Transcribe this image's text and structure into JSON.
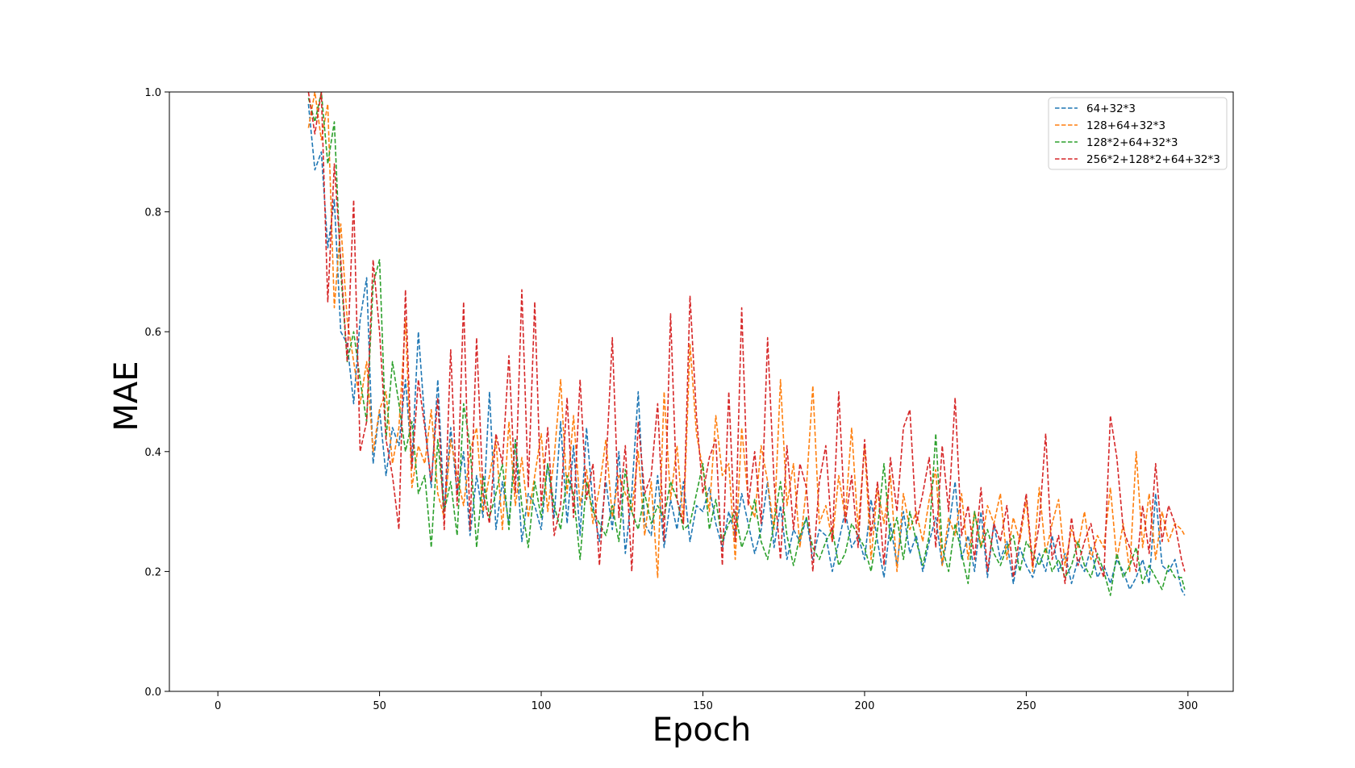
{
  "chart_data": {
    "type": "line",
    "title": "",
    "xlabel": "Epoch",
    "ylabel": "MAE",
    "xlim": [
      -15,
      314
    ],
    "ylim": [
      0.0,
      1.0
    ],
    "xticks": [
      0,
      50,
      100,
      150,
      200,
      250,
      300
    ],
    "yticks": [
      0.0,
      0.2,
      0.4,
      0.6,
      0.8,
      1.0
    ],
    "xtick_labels": [
      "0",
      "50",
      "100",
      "150",
      "200",
      "250",
      "300"
    ],
    "ytick_labels": [
      "0.0",
      "0.2",
      "0.4",
      "0.6",
      "0.8",
      "1.0"
    ],
    "grid": false,
    "line_style": "dashed",
    "legend_position": "top-right",
    "x": [
      28,
      30,
      32,
      34,
      36,
      38,
      40,
      42,
      44,
      46,
      48,
      50,
      52,
      54,
      56,
      58,
      60,
      62,
      64,
      66,
      68,
      70,
      72,
      74,
      76,
      78,
      80,
      82,
      84,
      86,
      88,
      90,
      92,
      94,
      96,
      98,
      100,
      102,
      104,
      106,
      108,
      110,
      112,
      114,
      116,
      118,
      120,
      122,
      124,
      126,
      128,
      130,
      132,
      134,
      136,
      138,
      140,
      142,
      144,
      146,
      148,
      150,
      152,
      154,
      156,
      158,
      160,
      162,
      164,
      166,
      168,
      170,
      172,
      174,
      176,
      178,
      180,
      182,
      184,
      186,
      188,
      190,
      192,
      194,
      196,
      198,
      200,
      202,
      204,
      206,
      208,
      210,
      212,
      214,
      216,
      218,
      220,
      222,
      224,
      226,
      228,
      230,
      232,
      234,
      236,
      238,
      240,
      242,
      244,
      246,
      248,
      250,
      252,
      254,
      256,
      258,
      260,
      262,
      264,
      266,
      268,
      270,
      272,
      274,
      276,
      278,
      280,
      282,
      284,
      286,
      288,
      290,
      292,
      294,
      296,
      298,
      299
    ],
    "series": [
      {
        "name": "64+32*3",
        "color": "#1f77b4",
        "values": [
          0.98,
          0.87,
          0.9,
          0.74,
          0.82,
          0.6,
          0.58,
          0.48,
          0.62,
          0.69,
          0.38,
          0.47,
          0.36,
          0.44,
          0.41,
          0.52,
          0.38,
          0.6,
          0.45,
          0.34,
          0.52,
          0.3,
          0.44,
          0.33,
          0.4,
          0.26,
          0.36,
          0.29,
          0.5,
          0.27,
          0.35,
          0.28,
          0.42,
          0.25,
          0.33,
          0.31,
          0.27,
          0.38,
          0.29,
          0.45,
          0.28,
          0.41,
          0.26,
          0.44,
          0.31,
          0.25,
          0.35,
          0.27,
          0.4,
          0.23,
          0.33,
          0.5,
          0.28,
          0.26,
          0.36,
          0.24,
          0.32,
          0.27,
          0.35,
          0.25,
          0.31,
          0.3,
          0.34,
          0.28,
          0.24,
          0.3,
          0.26,
          0.33,
          0.28,
          0.23,
          0.27,
          0.35,
          0.24,
          0.31,
          0.22,
          0.27,
          0.25,
          0.29,
          0.22,
          0.27,
          0.26,
          0.2,
          0.25,
          0.3,
          0.24,
          0.26,
          0.22,
          0.32,
          0.25,
          0.19,
          0.28,
          0.21,
          0.3,
          0.23,
          0.26,
          0.2,
          0.25,
          0.29,
          0.21,
          0.27,
          0.35,
          0.22,
          0.26,
          0.2,
          0.3,
          0.19,
          0.28,
          0.22,
          0.25,
          0.18,
          0.24,
          0.21,
          0.19,
          0.23,
          0.2,
          0.26,
          0.2,
          0.23,
          0.18,
          0.22,
          0.2,
          0.24,
          0.19,
          0.21,
          0.18,
          0.22,
          0.2,
          0.17,
          0.19,
          0.22,
          0.18,
          0.33,
          0.21,
          0.2,
          0.22,
          0.17,
          0.16
        ]
      },
      {
        "name": "128+64+32*3",
        "color": "#ff7f0e",
        "values": [
          0.94,
          1.0,
          0.92,
          0.98,
          0.64,
          0.78,
          0.62,
          0.55,
          0.48,
          0.55,
          0.4,
          0.47,
          0.5,
          0.38,
          0.44,
          0.62,
          0.34,
          0.41,
          0.38,
          0.47,
          0.33,
          0.29,
          0.42,
          0.36,
          0.31,
          0.4,
          0.44,
          0.3,
          0.36,
          0.42,
          0.27,
          0.45,
          0.31,
          0.39,
          0.29,
          0.36,
          0.43,
          0.3,
          0.39,
          0.52,
          0.33,
          0.46,
          0.31,
          0.37,
          0.28,
          0.34,
          0.42,
          0.29,
          0.36,
          0.33,
          0.3,
          0.4,
          0.26,
          0.35,
          0.19,
          0.5,
          0.32,
          0.41,
          0.28,
          0.58,
          0.43,
          0.37,
          0.3,
          0.46,
          0.36,
          0.38,
          0.22,
          0.44,
          0.32,
          0.29,
          0.41,
          0.35,
          0.27,
          0.52,
          0.31,
          0.38,
          0.24,
          0.34,
          0.51,
          0.28,
          0.31,
          0.25,
          0.36,
          0.29,
          0.44,
          0.27,
          0.41,
          0.22,
          0.34,
          0.28,
          0.36,
          0.2,
          0.33,
          0.27,
          0.3,
          0.25,
          0.32,
          0.37,
          0.21,
          0.29,
          0.26,
          0.33,
          0.22,
          0.3,
          0.24,
          0.31,
          0.28,
          0.33,
          0.22,
          0.29,
          0.25,
          0.32,
          0.2,
          0.34,
          0.23,
          0.28,
          0.32,
          0.21,
          0.27,
          0.24,
          0.3,
          0.22,
          0.26,
          0.24,
          0.34,
          0.22,
          0.28,
          0.2,
          0.4,
          0.24,
          0.33,
          0.22,
          0.3,
          0.25,
          0.28,
          0.27,
          0.26
        ]
      },
      {
        "name": "128*2+64+32*3",
        "color": "#2ca02c",
        "values": [
          0.99,
          0.95,
          1.0,
          0.88,
          0.95,
          0.7,
          0.55,
          0.6,
          0.52,
          0.45,
          0.68,
          0.72,
          0.42,
          0.55,
          0.48,
          0.4,
          0.45,
          0.33,
          0.36,
          0.24,
          0.42,
          0.3,
          0.35,
          0.26,
          0.48,
          0.41,
          0.24,
          0.36,
          0.29,
          0.33,
          0.38,
          0.27,
          0.42,
          0.31,
          0.24,
          0.35,
          0.29,
          0.38,
          0.31,
          0.27,
          0.36,
          0.33,
          0.22,
          0.35,
          0.3,
          0.28,
          0.26,
          0.31,
          0.25,
          0.37,
          0.3,
          0.27,
          0.33,
          0.28,
          0.31,
          0.29,
          0.35,
          0.32,
          0.27,
          0.28,
          0.33,
          0.38,
          0.27,
          0.32,
          0.25,
          0.28,
          0.3,
          0.24,
          0.27,
          0.32,
          0.25,
          0.22,
          0.28,
          0.35,
          0.26,
          0.21,
          0.26,
          0.29,
          0.24,
          0.22,
          0.25,
          0.27,
          0.21,
          0.23,
          0.28,
          0.26,
          0.24,
          0.2,
          0.27,
          0.38,
          0.25,
          0.29,
          0.22,
          0.3,
          0.25,
          0.21,
          0.26,
          0.43,
          0.24,
          0.2,
          0.28,
          0.23,
          0.18,
          0.3,
          0.24,
          0.27,
          0.23,
          0.21,
          0.24,
          0.26,
          0.2,
          0.25,
          0.23,
          0.21,
          0.24,
          0.2,
          0.22,
          0.19,
          0.21,
          0.25,
          0.21,
          0.19,
          0.23,
          0.2,
          0.16,
          0.23,
          0.19,
          0.21,
          0.24,
          0.18,
          0.21,
          0.19,
          0.17,
          0.21,
          0.19,
          0.19,
          0.17
        ]
      },
      {
        "name": "256*2+128*2+64+32*3",
        "color": "#d62728",
        "values": [
          1.0,
          0.93,
          1.0,
          0.65,
          0.88,
          0.72,
          0.55,
          0.82,
          0.4,
          0.45,
          0.72,
          0.6,
          0.42,
          0.36,
          0.27,
          0.67,
          0.37,
          0.52,
          0.44,
          0.35,
          0.49,
          0.27,
          0.57,
          0.31,
          0.65,
          0.27,
          0.59,
          0.33,
          0.28,
          0.43,
          0.38,
          0.56,
          0.33,
          0.67,
          0.34,
          0.65,
          0.31,
          0.44,
          0.26,
          0.31,
          0.49,
          0.29,
          0.52,
          0.32,
          0.38,
          0.21,
          0.37,
          0.59,
          0.29,
          0.41,
          0.2,
          0.45,
          0.33,
          0.36,
          0.48,
          0.25,
          0.63,
          0.32,
          0.28,
          0.66,
          0.46,
          0.33,
          0.39,
          0.42,
          0.21,
          0.5,
          0.25,
          0.64,
          0.31,
          0.4,
          0.28,
          0.59,
          0.35,
          0.22,
          0.41,
          0.27,
          0.38,
          0.34,
          0.2,
          0.35,
          0.41,
          0.25,
          0.5,
          0.28,
          0.36,
          0.24,
          0.42,
          0.26,
          0.35,
          0.21,
          0.39,
          0.3,
          0.44,
          0.47,
          0.28,
          0.33,
          0.39,
          0.24,
          0.41,
          0.3,
          0.49,
          0.26,
          0.31,
          0.22,
          0.34,
          0.2,
          0.28,
          0.25,
          0.31,
          0.19,
          0.26,
          0.33,
          0.21,
          0.28,
          0.43,
          0.22,
          0.26,
          0.18,
          0.29,
          0.21,
          0.25,
          0.28,
          0.22,
          0.19,
          0.46,
          0.39,
          0.27,
          0.24,
          0.2,
          0.31,
          0.23,
          0.38,
          0.25,
          0.31,
          0.28,
          0.22,
          0.2
        ]
      }
    ]
  }
}
